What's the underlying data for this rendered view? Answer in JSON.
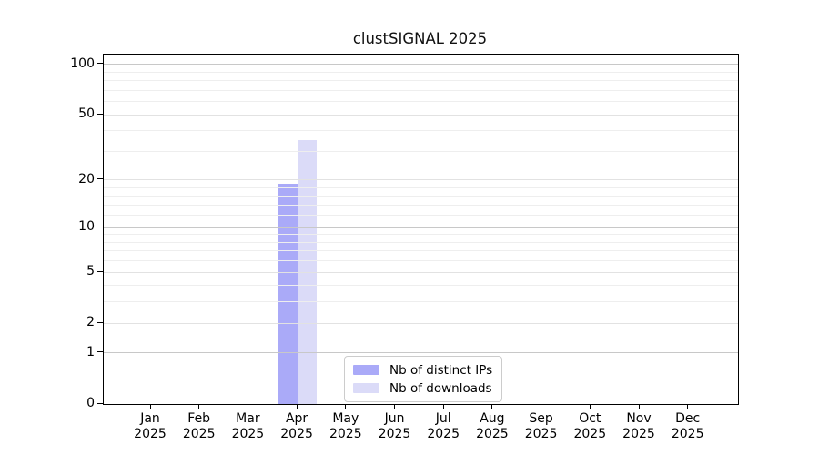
{
  "chart_data": {
    "type": "bar",
    "title": "clustSIGNAL 2025",
    "categories": [
      "Jan",
      "Feb",
      "Mar",
      "Apr",
      "May",
      "Jun",
      "Jul",
      "Aug",
      "Sep",
      "Oct",
      "Nov",
      "Dec"
    ],
    "year_label": "2025",
    "series": [
      {
        "name": "Nb of distinct IPs",
        "color": "#aaaaf8",
        "values": [
          0,
          0,
          0,
          19,
          0,
          0,
          0,
          0,
          0,
          0,
          0,
          0
        ]
      },
      {
        "name": "Nb of downloads",
        "color": "#dbdbf8",
        "values": [
          0,
          0,
          0,
          35,
          0,
          0,
          0,
          0,
          0,
          0,
          0,
          0
        ]
      }
    ],
    "xlabel": "",
    "ylabel": "",
    "yscale": "log10(1+x)",
    "ylim": [
      0,
      115
    ],
    "yticks": [
      0,
      1,
      2,
      5,
      10,
      20,
      50,
      100
    ],
    "grid": {
      "major": [
        1,
        10,
        100
      ],
      "mid": [
        2,
        5,
        20,
        50
      ],
      "minor": [
        3,
        4,
        6,
        7,
        8,
        9,
        12,
        14,
        16,
        18,
        30,
        40,
        60,
        70,
        80,
        90
      ]
    },
    "grid_colors": {
      "major": "#c8c8c8",
      "mid": "#e2e2e2",
      "minor": "#eeeeee"
    },
    "legend_position": "lower center",
    "legend_items": [
      "Nb of distinct IPs",
      "Nb of downloads"
    ]
  }
}
